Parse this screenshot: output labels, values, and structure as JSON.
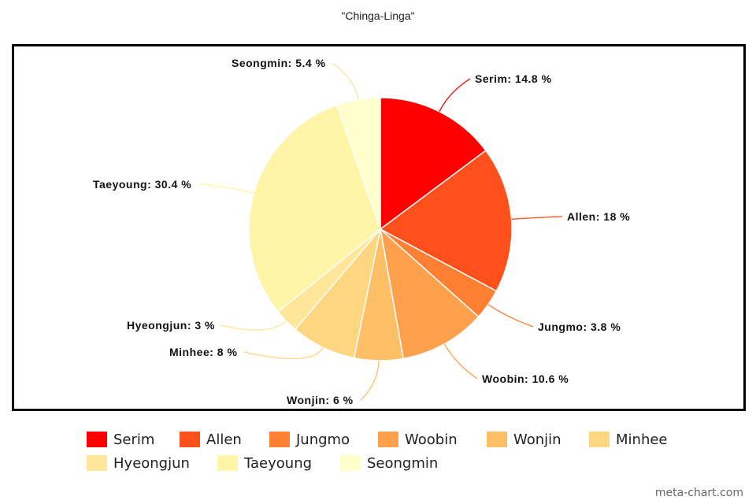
{
  "chart_data": {
    "type": "pie",
    "title": "\"Chinga-Linga\"",
    "start_angle_deg": 0,
    "direction": "clockwise",
    "slices": [
      {
        "name": "Serim",
        "value": 14.8,
        "label": "Serim: 14.8 %",
        "color": "#FF0000"
      },
      {
        "name": "Allen",
        "value": 18,
        "label": "Allen: 18 %",
        "color": "#FF4F1A"
      },
      {
        "name": "Jungmo",
        "value": 3.8,
        "label": "Jungmo: 3.8 %",
        "color": "#FF7F33"
      },
      {
        "name": "Woobin",
        "value": 10.6,
        "label": "Woobin: 10.6 %",
        "color": "#FFA04D"
      },
      {
        "name": "Wonjin",
        "value": 6,
        "label": "Wonjin: 6 %",
        "color": "#FFBF66"
      },
      {
        "name": "Minhee",
        "value": 8,
        "label": "Minhee: 8 %",
        "color": "#FFD680"
      },
      {
        "name": "Hyeongjun",
        "value": 3,
        "label": "Hyeongjun: 3 %",
        "color": "#FFE699"
      },
      {
        "name": "Taeyoung",
        "value": 30.4,
        "label": "Taeyoung: 30.4 %",
        "color": "#FFF5A6"
      },
      {
        "name": "Seongmin",
        "value": 5.4,
        "label": "Seongmin: 5.4 %",
        "color": "#FFFFCC"
      }
    ],
    "legend_position": "bottom"
  },
  "credit": "meta-chart.com"
}
